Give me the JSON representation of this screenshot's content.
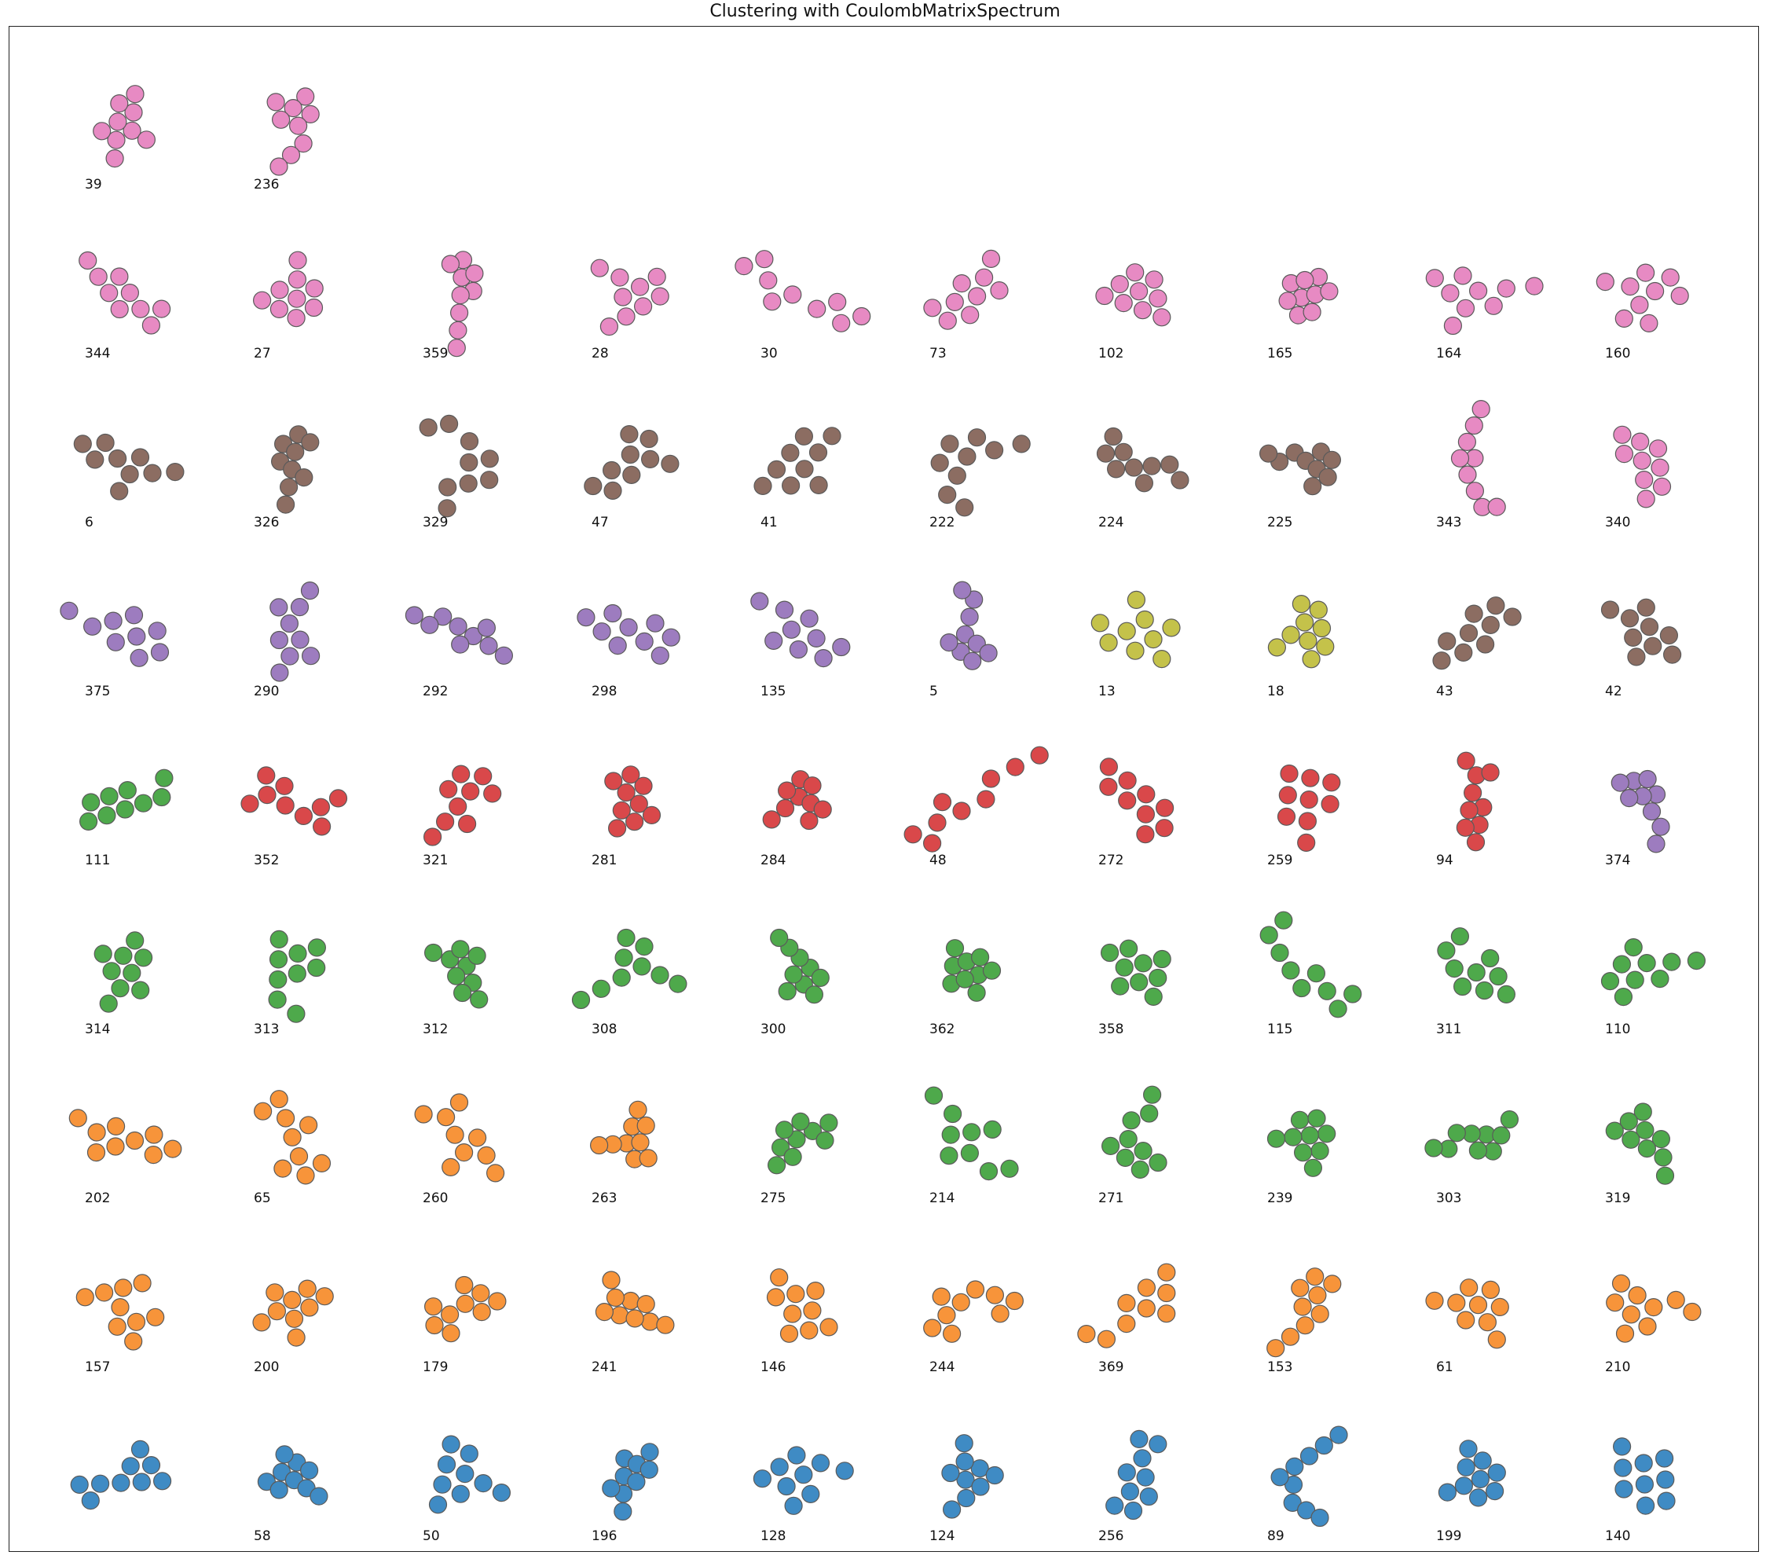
{
  "chart_data": {
    "type": "scatter",
    "title": "Clustering with CoulombMatrixSpectrum",
    "xlabel": "",
    "ylabel": "",
    "grid": false,
    "palette": {
      "pink": "#e78ac3",
      "brown": "#8c6d62",
      "purple": "#9d7cbf",
      "olive": "#c4c24a",
      "green": "#4ea94b",
      "red": "#d9484a",
      "orange": "#f7943a",
      "blue": "#3f8bc4"
    },
    "rows": [
      [
        {
          "id": "39",
          "cluster": "pink"
        },
        {
          "id": "236",
          "cluster": "pink"
        }
      ],
      [
        {
          "id": "344",
          "cluster": "pink"
        },
        {
          "id": "27",
          "cluster": "pink"
        },
        {
          "id": "359",
          "cluster": "pink"
        },
        {
          "id": "28",
          "cluster": "pink"
        },
        {
          "id": "30",
          "cluster": "pink"
        },
        {
          "id": "73",
          "cluster": "pink"
        },
        {
          "id": "102",
          "cluster": "pink"
        },
        {
          "id": "165",
          "cluster": "pink"
        },
        {
          "id": "164",
          "cluster": "pink"
        },
        {
          "id": "160",
          "cluster": "pink"
        }
      ],
      [
        {
          "id": "6",
          "cluster": "brown"
        },
        {
          "id": "326",
          "cluster": "brown"
        },
        {
          "id": "329",
          "cluster": "brown"
        },
        {
          "id": "47",
          "cluster": "brown"
        },
        {
          "id": "41",
          "cluster": "brown"
        },
        {
          "id": "222",
          "cluster": "brown"
        },
        {
          "id": "224",
          "cluster": "brown"
        },
        {
          "id": "225",
          "cluster": "brown"
        },
        {
          "id": "343",
          "cluster": "pink"
        },
        {
          "id": "340",
          "cluster": "pink"
        }
      ],
      [
        {
          "id": "375",
          "cluster": "purple"
        },
        {
          "id": "290",
          "cluster": "purple"
        },
        {
          "id": "292",
          "cluster": "purple"
        },
        {
          "id": "298",
          "cluster": "purple"
        },
        {
          "id": "135",
          "cluster": "purple"
        },
        {
          "id": "5",
          "cluster": "purple"
        },
        {
          "id": "13",
          "cluster": "olive"
        },
        {
          "id": "18",
          "cluster": "olive"
        },
        {
          "id": "43",
          "cluster": "brown"
        },
        {
          "id": "42",
          "cluster": "brown"
        }
      ],
      [
        {
          "id": "111",
          "cluster": "green"
        },
        {
          "id": "352",
          "cluster": "red"
        },
        {
          "id": "321",
          "cluster": "red"
        },
        {
          "id": "281",
          "cluster": "red"
        },
        {
          "id": "284",
          "cluster": "red"
        },
        {
          "id": "48",
          "cluster": "red"
        },
        {
          "id": "272",
          "cluster": "red"
        },
        {
          "id": "259",
          "cluster": "red"
        },
        {
          "id": "94",
          "cluster": "red"
        },
        {
          "id": "374",
          "cluster": "purple"
        }
      ],
      [
        {
          "id": "314",
          "cluster": "green"
        },
        {
          "id": "313",
          "cluster": "green"
        },
        {
          "id": "312",
          "cluster": "green"
        },
        {
          "id": "308",
          "cluster": "green"
        },
        {
          "id": "300",
          "cluster": "green"
        },
        {
          "id": "362",
          "cluster": "green"
        },
        {
          "id": "358",
          "cluster": "green"
        },
        {
          "id": "115",
          "cluster": "green"
        },
        {
          "id": "311",
          "cluster": "green"
        },
        {
          "id": "110",
          "cluster": "green"
        }
      ],
      [
        {
          "id": "202",
          "cluster": "orange"
        },
        {
          "id": "65",
          "cluster": "orange"
        },
        {
          "id": "260",
          "cluster": "orange"
        },
        {
          "id": "263",
          "cluster": "orange"
        },
        {
          "id": "275",
          "cluster": "green"
        },
        {
          "id": "214",
          "cluster": "green"
        },
        {
          "id": "271",
          "cluster": "green"
        },
        {
          "id": "239",
          "cluster": "green"
        },
        {
          "id": "303",
          "cluster": "green"
        },
        {
          "id": "319",
          "cluster": "green"
        }
      ],
      [
        {
          "id": "157",
          "cluster": "orange"
        },
        {
          "id": "200",
          "cluster": "orange"
        },
        {
          "id": "179",
          "cluster": "orange"
        },
        {
          "id": "241",
          "cluster": "orange"
        },
        {
          "id": "146",
          "cluster": "orange"
        },
        {
          "id": "244",
          "cluster": "orange"
        },
        {
          "id": "369",
          "cluster": "orange"
        },
        {
          "id": "153",
          "cluster": "orange"
        },
        {
          "id": "61",
          "cluster": "orange"
        },
        {
          "id": "210",
          "cluster": "orange"
        }
      ],
      [
        {
          "id": "",
          "cluster": "blue"
        },
        {
          "id": "58",
          "cluster": "blue"
        },
        {
          "id": "50",
          "cluster": "blue"
        },
        {
          "id": "196",
          "cluster": "blue"
        },
        {
          "id": "128",
          "cluster": "blue"
        },
        {
          "id": "124",
          "cluster": "blue"
        },
        {
          "id": "256",
          "cluster": "blue"
        },
        {
          "id": "89",
          "cluster": "blue"
        },
        {
          "id": "199",
          "cluster": "blue"
        },
        {
          "id": "140",
          "cluster": "blue"
        }
      ]
    ]
  }
}
